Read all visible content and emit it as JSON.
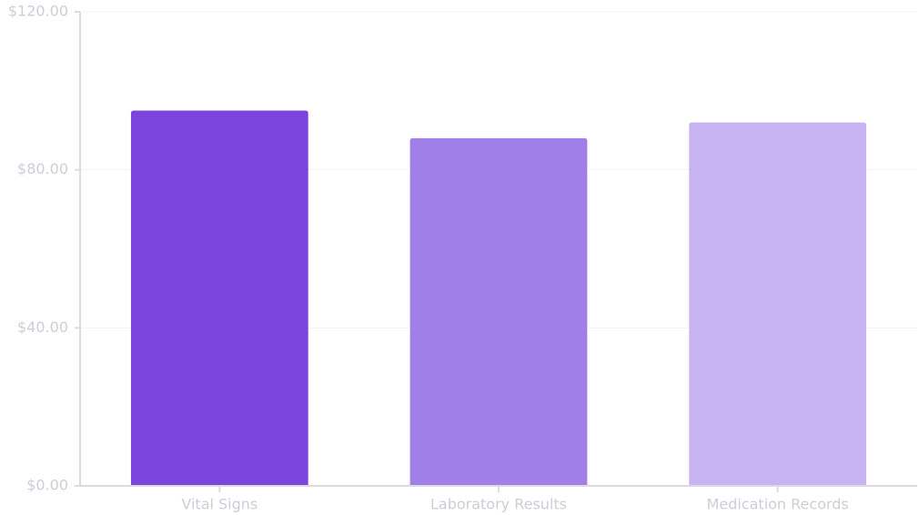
{
  "chart_data": {
    "type": "bar",
    "categories": [
      "Vital Signs",
      "Laboratory Results",
      "Medication Records"
    ],
    "values": [
      95,
      88,
      92
    ],
    "colors": [
      "#7b45dd",
      "#a17fe8",
      "#c8b3f2"
    ],
    "ylim": [
      0,
      120
    ],
    "yticks": [
      {
        "value": 0,
        "label": "$0.00"
      },
      {
        "value": 40,
        "label": "$40.00"
      },
      {
        "value": 80,
        "label": "$80.00"
      },
      {
        "value": 120,
        "label": "$120.00"
      }
    ],
    "grid": true
  }
}
